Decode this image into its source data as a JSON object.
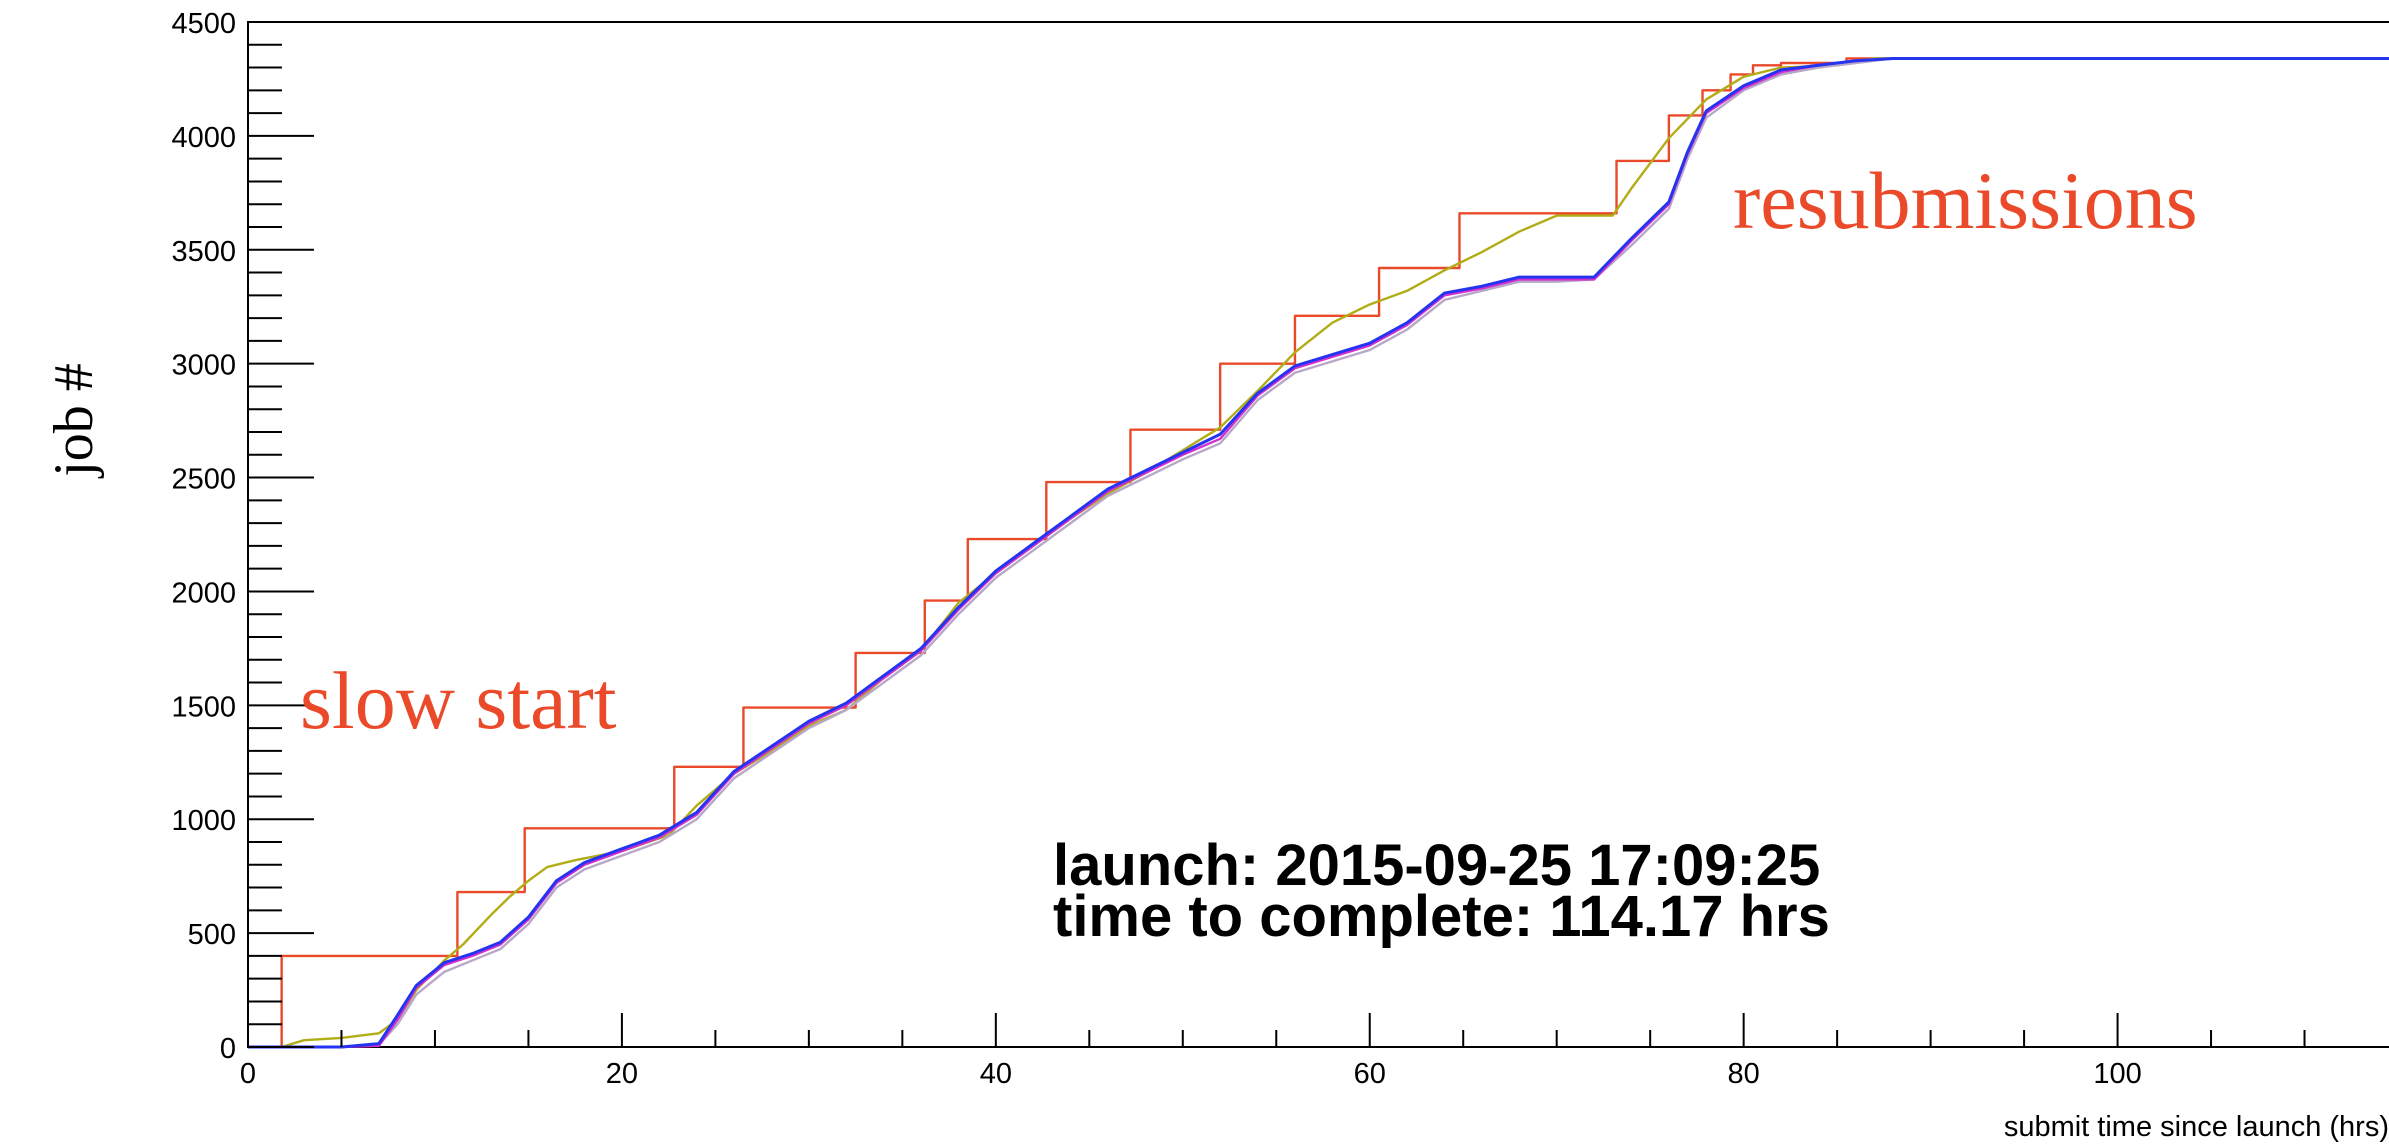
{
  "chart_data": {
    "type": "line",
    "ylabel": "job #",
    "xlabel": "submit time since launch (hrs)",
    "xlim": [
      0,
      115
    ],
    "ylim": [
      0,
      4500
    ],
    "x_ticks": [
      0,
      20,
      40,
      60,
      80,
      100
    ],
    "y_ticks": [
      0,
      500,
      1000,
      1500,
      2000,
      2500,
      3000,
      3500,
      4000,
      4500
    ],
    "x_tick_labels": [
      "0",
      "20",
      "40",
      "60",
      "80",
      "100"
    ],
    "y_tick_labels": [
      "0",
      "500",
      "1000",
      "1500",
      "2000",
      "2500",
      "3000",
      "3500",
      "4000",
      "4500"
    ],
    "grid": false,
    "legend": "none",
    "annotations": {
      "slow_start": "slow start",
      "resubmissions": "resubmissions",
      "launch": "launch: 2015-09-25 17:09:25",
      "time_to_complete": "time to complete: 114.17 hrs"
    },
    "series": [
      {
        "color": "#ea4a2a",
        "step": true,
        "points": [
          [
            0,
            0
          ],
          [
            1.8,
            0
          ],
          [
            1.8,
            400
          ],
          [
            11.2,
            400
          ],
          [
            11.2,
            680
          ],
          [
            14.8,
            680
          ],
          [
            14.8,
            960
          ],
          [
            22.8,
            960
          ],
          [
            22.8,
            1230
          ],
          [
            26.5,
            1230
          ],
          [
            26.5,
            1490
          ],
          [
            32.5,
            1490
          ],
          [
            32.5,
            1730
          ],
          [
            36.2,
            1730
          ],
          [
            36.2,
            1960
          ],
          [
            38.5,
            1960
          ],
          [
            38.5,
            2230
          ],
          [
            42.7,
            2230
          ],
          [
            42.7,
            2480
          ],
          [
            47.2,
            2480
          ],
          [
            47.2,
            2710
          ],
          [
            52.0,
            2710
          ],
          [
            52.0,
            3000
          ],
          [
            56.0,
            3000
          ],
          [
            56.0,
            3210
          ],
          [
            60.5,
            3210
          ],
          [
            60.5,
            3420
          ],
          [
            64.8,
            3420
          ],
          [
            64.8,
            3660
          ],
          [
            73.2,
            3660
          ],
          [
            73.2,
            3890
          ],
          [
            76.0,
            3890
          ],
          [
            76.0,
            4090
          ],
          [
            77.8,
            4090
          ],
          [
            77.8,
            4200
          ],
          [
            79.3,
            4200
          ],
          [
            79.3,
            4270
          ],
          [
            80.5,
            4270
          ],
          [
            80.5,
            4310
          ],
          [
            82.0,
            4310
          ],
          [
            82.0,
            4320
          ],
          [
            85.5,
            4320
          ],
          [
            85.5,
            4340
          ],
          [
            115,
            4340
          ]
        ]
      },
      {
        "color": "#b2ad16",
        "step": false,
        "points": [
          [
            0,
            0
          ],
          [
            1.8,
            0
          ],
          [
            3,
            30
          ],
          [
            5,
            40
          ],
          [
            7,
            60
          ],
          [
            8,
            120
          ],
          [
            9,
            250
          ],
          [
            10.5,
            380
          ],
          [
            11.5,
            450
          ],
          [
            13,
            580
          ],
          [
            14,
            660
          ],
          [
            15,
            730
          ],
          [
            16,
            790
          ],
          [
            17.5,
            820
          ],
          [
            20,
            860
          ],
          [
            22.5,
            930
          ],
          [
            24,
            1060
          ],
          [
            26,
            1200
          ],
          [
            28,
            1300
          ],
          [
            30,
            1410
          ],
          [
            32,
            1480
          ],
          [
            34,
            1620
          ],
          [
            36,
            1740
          ],
          [
            38,
            1950
          ],
          [
            40,
            2080
          ],
          [
            42,
            2200
          ],
          [
            44,
            2320
          ],
          [
            46,
            2430
          ],
          [
            48,
            2520
          ],
          [
            50,
            2620
          ],
          [
            52,
            2720
          ],
          [
            54,
            2880
          ],
          [
            56,
            3050
          ],
          [
            58,
            3180
          ],
          [
            60,
            3260
          ],
          [
            62,
            3320
          ],
          [
            64,
            3410
          ],
          [
            66,
            3490
          ],
          [
            68,
            3580
          ],
          [
            70,
            3650
          ],
          [
            73,
            3650
          ],
          [
            74,
            3770
          ],
          [
            76,
            3990
          ],
          [
            78,
            4160
          ],
          [
            80,
            4260
          ],
          [
            82,
            4300
          ],
          [
            85,
            4310
          ],
          [
            87,
            4340
          ],
          [
            115,
            4340
          ]
        ]
      },
      {
        "color": "#b8a8c8",
        "step": false,
        "points": [
          [
            0,
            0
          ],
          [
            5,
            0
          ],
          [
            7,
            10
          ],
          [
            8,
            100
          ],
          [
            9,
            230
          ],
          [
            10.5,
            330
          ],
          [
            12,
            380
          ],
          [
            13.5,
            430
          ],
          [
            15,
            540
          ],
          [
            16.5,
            700
          ],
          [
            18,
            780
          ],
          [
            20,
            840
          ],
          [
            22,
            900
          ],
          [
            24,
            1000
          ],
          [
            26,
            1180
          ],
          [
            28,
            1290
          ],
          [
            30,
            1400
          ],
          [
            32,
            1480
          ],
          [
            34,
            1600
          ],
          [
            36,
            1720
          ],
          [
            38,
            1900
          ],
          [
            40,
            2060
          ],
          [
            42,
            2180
          ],
          [
            44,
            2300
          ],
          [
            46,
            2420
          ],
          [
            48,
            2500
          ],
          [
            50,
            2580
          ],
          [
            52,
            2650
          ],
          [
            54,
            2840
          ],
          [
            56,
            2960
          ],
          [
            58,
            3010
          ],
          [
            60,
            3060
          ],
          [
            62,
            3150
          ],
          [
            64,
            3280
          ],
          [
            66,
            3320
          ],
          [
            68,
            3360
          ],
          [
            70,
            3360
          ],
          [
            72,
            3370
          ],
          [
            74,
            3520
          ],
          [
            75,
            3600
          ],
          [
            76,
            3680
          ],
          [
            77,
            3900
          ],
          [
            78,
            4080
          ],
          [
            80,
            4200
          ],
          [
            82,
            4270
          ],
          [
            84,
            4300
          ],
          [
            86,
            4320
          ],
          [
            88,
            4340
          ],
          [
            115,
            4340
          ]
        ]
      },
      {
        "color": "#d22fd0",
        "step": false,
        "points": [
          [
            0,
            0
          ],
          [
            5,
            0
          ],
          [
            7,
            5
          ],
          [
            8,
            120
          ],
          [
            9,
            260
          ],
          [
            10.5,
            360
          ],
          [
            12,
            400
          ],
          [
            13.5,
            450
          ],
          [
            15,
            560
          ],
          [
            16.5,
            720
          ],
          [
            18,
            800
          ],
          [
            20,
            860
          ],
          [
            22,
            920
          ],
          [
            24,
            1020
          ],
          [
            26,
            1200
          ],
          [
            28,
            1310
          ],
          [
            30,
            1420
          ],
          [
            32,
            1500
          ],
          [
            34,
            1620
          ],
          [
            36,
            1740
          ],
          [
            38,
            1920
          ],
          [
            40,
            2080
          ],
          [
            42,
            2200
          ],
          [
            44,
            2320
          ],
          [
            46,
            2440
          ],
          [
            48,
            2520
          ],
          [
            50,
            2600
          ],
          [
            52,
            2670
          ],
          [
            54,
            2860
          ],
          [
            56,
            2980
          ],
          [
            58,
            3030
          ],
          [
            60,
            3080
          ],
          [
            62,
            3170
          ],
          [
            64,
            3300
          ],
          [
            66,
            3330
          ],
          [
            68,
            3370
          ],
          [
            72,
            3370
          ],
          [
            74,
            3540
          ],
          [
            75,
            3620
          ],
          [
            76,
            3700
          ],
          [
            77,
            3920
          ],
          [
            78,
            4100
          ],
          [
            80,
            4210
          ],
          [
            82,
            4280
          ],
          [
            84,
            4310
          ],
          [
            86,
            4330
          ],
          [
            88,
            4340
          ],
          [
            115,
            4340
          ]
        ]
      },
      {
        "color": "#2434f0",
        "step": false,
        "points": [
          [
            0,
            0
          ],
          [
            5,
            0
          ],
          [
            7,
            15
          ],
          [
            8,
            140
          ],
          [
            9,
            270
          ],
          [
            10.5,
            370
          ],
          [
            12,
            410
          ],
          [
            13.5,
            460
          ],
          [
            15,
            570
          ],
          [
            16.5,
            730
          ],
          [
            18,
            810
          ],
          [
            20,
            870
          ],
          [
            22,
            930
          ],
          [
            24,
            1030
          ],
          [
            26,
            1210
          ],
          [
            28,
            1320
          ],
          [
            30,
            1430
          ],
          [
            32,
            1510
          ],
          [
            34,
            1630
          ],
          [
            36,
            1750
          ],
          [
            38,
            1930
          ],
          [
            40,
            2090
          ],
          [
            42,
            2210
          ],
          [
            44,
            2330
          ],
          [
            46,
            2450
          ],
          [
            48,
            2530
          ],
          [
            50,
            2610
          ],
          [
            52,
            2690
          ],
          [
            54,
            2870
          ],
          [
            56,
            2990
          ],
          [
            58,
            3040
          ],
          [
            60,
            3090
          ],
          [
            62,
            3180
          ],
          [
            64,
            3310
          ],
          [
            66,
            3340
          ],
          [
            68,
            3380
          ],
          [
            72,
            3380
          ],
          [
            74,
            3550
          ],
          [
            75,
            3630
          ],
          [
            76,
            3710
          ],
          [
            77,
            3930
          ],
          [
            78,
            4110
          ],
          [
            80,
            4220
          ],
          [
            82,
            4290
          ],
          [
            84,
            4310
          ],
          [
            86,
            4330
          ],
          [
            88,
            4340
          ],
          [
            115,
            4340
          ]
        ]
      }
    ]
  }
}
